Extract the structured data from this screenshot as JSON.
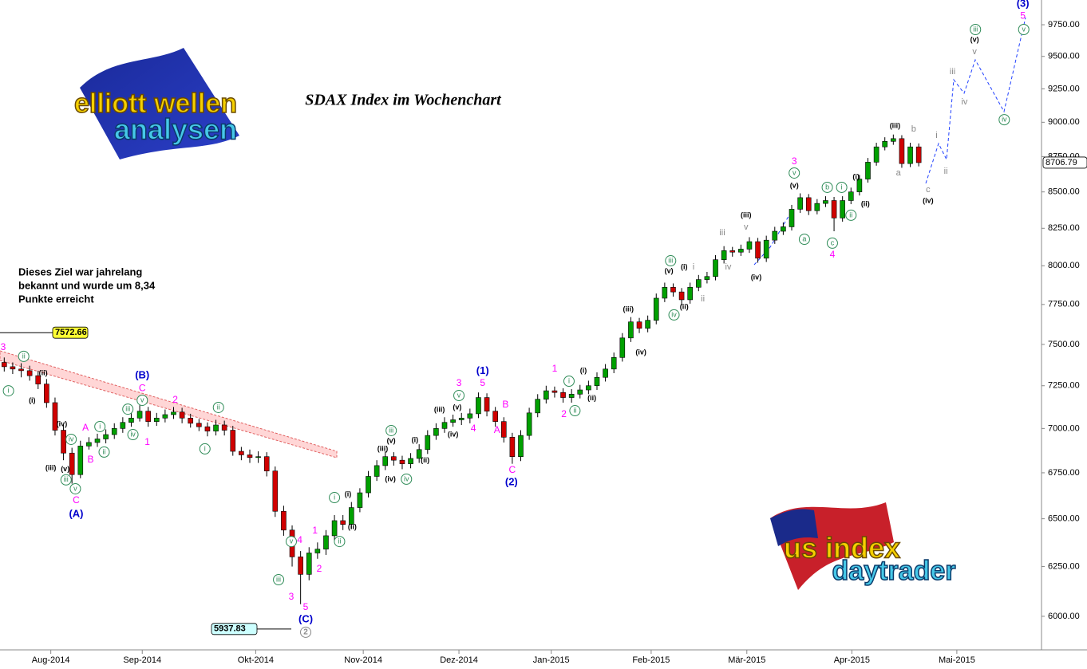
{
  "chart_data": {
    "type": "candlestick",
    "title": "SDAX Index im Wochenchart",
    "note": [
      "Dieses Ziel war jahrelang",
      "bekannt und wurde um 8,34",
      "Punkte erreicht"
    ],
    "logos": [
      "elliott wellen",
      "analysen",
      "us index",
      "daytrader"
    ],
    "log_scale": true,
    "grid": false,
    "up_color": "#00a000",
    "down_color": "#d00000",
    "ylim": [
      5837,
      9950
    ],
    "yticks": [
      {
        "value": 6000,
        "label": "6000.00"
      },
      {
        "value": 6250,
        "label": "6250.00"
      },
      {
        "value": 6500,
        "label": "6500.00"
      },
      {
        "value": 6750,
        "label": "6750.00"
      },
      {
        "value": 7000,
        "label": "7000.00"
      },
      {
        "value": 7250,
        "label": "7250.00"
      },
      {
        "value": 7500,
        "label": "7500.00"
      },
      {
        "value": 7750,
        "label": "7750.00"
      },
      {
        "value": 8000,
        "label": "8000.00"
      },
      {
        "value": 8250,
        "label": "8250.00"
      },
      {
        "value": 8500,
        "label": "8500.00"
      },
      {
        "value": 8750,
        "label": "8750.00"
      },
      {
        "value": 9000,
        "label": "9000.00"
      },
      {
        "value": 9250,
        "label": "9250.00"
      },
      {
        "value": 9500,
        "label": "9500.00"
      },
      {
        "value": 9750,
        "label": "9750.00"
      }
    ],
    "xlim": [
      0,
      123
    ],
    "xticks": [
      {
        "value": 6.0,
        "label": "Aug-2014"
      },
      {
        "value": 16.8,
        "label": "Sep-2014"
      },
      {
        "value": 30.2,
        "label": "Okt-2014"
      },
      {
        "value": 42.9,
        "label": "Nov-2014"
      },
      {
        "value": 54.2,
        "label": "Dez-2014"
      },
      {
        "value": 65.1,
        "label": "Jan-2015"
      },
      {
        "value": 76.9,
        "label": "Feb-2015"
      },
      {
        "value": 88.2,
        "label": "Mär-2015"
      },
      {
        "value": 100.6,
        "label": "Apr-2015"
      },
      {
        "value": 113.0,
        "label": "Mai-2015"
      }
    ],
    "open": [
      7390,
      7364,
      7350,
      7340,
      7310,
      7260,
      7150,
      6990,
      6860,
      6740,
      6900,
      6920,
      6940,
      6965,
      7000,
      7035,
      7060,
      7100,
      7040,
      7060,
      7080,
      7095,
      7060,
      7030,
      7010,
      6985,
      7020,
      6990,
      6870,
      6850,
      6835,
      6840,
      6760,
      6540,
      6440,
      6300,
      6210,
      6320,
      6340,
      6410,
      6490,
      6470,
      6560,
      6640,
      6730,
      6790,
      6840,
      6820,
      6800,
      6830,
      6880,
      6960,
      7000,
      7035,
      7050,
      7060,
      7085,
      7180,
      7100,
      7040,
      6950,
      6840,
      6960,
      7090,
      7170,
      7220,
      7210,
      7180,
      7200,
      7225,
      7250,
      7300,
      7350,
      7420,
      7540,
      7640,
      7600,
      7650,
      7790,
      7860,
      7830,
      7780,
      7860,
      7910,
      7930,
      8040,
      8100,
      8090,
      8110,
      8160,
      8050,
      8170,
      8230,
      8260,
      8380,
      8460,
      8370,
      8420,
      8440,
      8320,
      8440,
      8500,
      8590,
      8710,
      8820,
      8860,
      8880,
      8700,
      8820
    ],
    "high": [
      7420,
      7390,
      7385,
      7370,
      7340,
      7290,
      7180,
      7020,
      6890,
      6930,
      6950,
      6970,
      6995,
      7030,
      7065,
      7095,
      7135,
      7125,
      7090,
      7110,
      7125,
      7120,
      7085,
      7055,
      7035,
      7050,
      7045,
      7015,
      6895,
      6880,
      6870,
      6865,
      6785,
      6570,
      6465,
      6330,
      6350,
      6375,
      6440,
      6520,
      6520,
      6590,
      6665,
      6760,
      6820,
      6870,
      6865,
      6845,
      6860,
      6910,
      6990,
      7030,
      7065,
      7080,
      7090,
      7115,
      7210,
      7205,
      7125,
      7065,
      6975,
      6990,
      7120,
      7200,
      7250,
      7245,
      7235,
      7230,
      7255,
      7280,
      7330,
      7380,
      7450,
      7570,
      7670,
      7665,
      7680,
      7820,
      7890,
      7885,
      7855,
      7890,
      7940,
      7960,
      8070,
      8130,
      8125,
      8140,
      8190,
      8185,
      8200,
      8260,
      8290,
      8410,
      8490,
      8485,
      8450,
      8470,
      8465,
      8470,
      8530,
      8620,
      8740,
      8850,
      8890,
      8910,
      8905,
      8850,
      8845
    ],
    "low": [
      7335,
      7320,
      7300,
      7280,
      7230,
      7120,
      6960,
      6820,
      6690,
      6720,
      6880,
      6895,
      6915,
      6940,
      6975,
      7010,
      7040,
      7010,
      7015,
      7035,
      7055,
      7030,
      7005,
      6985,
      6955,
      6960,
      6960,
      6845,
      6820,
      6805,
      6805,
      6730,
      6510,
      6410,
      6250,
      6060,
      6180,
      6290,
      6310,
      6385,
      6440,
      6445,
      6535,
      6615,
      6705,
      6765,
      6790,
      6770,
      6775,
      6805,
      6855,
      6935,
      6975,
      7010,
      7020,
      7030,
      7060,
      7070,
      7010,
      6920,
      6800,
      6815,
      6935,
      7065,
      7145,
      7180,
      7150,
      7150,
      7175,
      7200,
      7225,
      7275,
      7325,
      7395,
      7515,
      7570,
      7575,
      7625,
      7765,
      7800,
      7745,
      7755,
      7835,
      7885,
      7905,
      8015,
      8060,
      8065,
      8085,
      8020,
      8025,
      8145,
      8205,
      8235,
      8355,
      8340,
      8345,
      8395,
      8230,
      8295,
      8415,
      8475,
      8565,
      8685,
      8795,
      8835,
      8670,
      8675,
      8680
    ],
    "close": [
      7364,
      7350,
      7340,
      7310,
      7260,
      7150,
      6990,
      6860,
      6740,
      6900,
      6920,
      6940,
      6965,
      7000,
      7035,
      7060,
      7100,
      7040,
      7060,
      7080,
      7095,
      7060,
      7030,
      7010,
      6985,
      7020,
      6990,
      6870,
      6850,
      6835,
      6840,
      6760,
      6540,
      6440,
      6300,
      6210,
      6320,
      6340,
      6410,
      6490,
      6470,
      6560,
      6640,
      6730,
      6790,
      6840,
      6820,
      6800,
      6830,
      6880,
      6960,
      7000,
      7035,
      7050,
      7060,
      7085,
      7180,
      7100,
      7040,
      6950,
      6840,
      6960,
      7090,
      7170,
      7220,
      7210,
      7180,
      7200,
      7225,
      7250,
      7300,
      7350,
      7420,
      7540,
      7640,
      7600,
      7650,
      7790,
      7860,
      7830,
      7780,
      7860,
      7910,
      7930,
      8040,
      8100,
      8090,
      8110,
      8160,
      8050,
      8170,
      8230,
      8260,
      8380,
      8460,
      8370,
      8420,
      8440,
      8320,
      8440,
      8500,
      8590,
      8710,
      8820,
      8860,
      8880,
      8700,
      8820,
      8706.79
    ],
    "price_tags": [
      {
        "value": 7572.66,
        "color": "#ffff33"
      },
      {
        "value": 5937.83,
        "color": "#ccffff"
      },
      {
        "value": 8706.79,
        "color": "#ffffff"
      }
    ],
    "annotations": [
      {
        "text": "(3)",
        "x": 120.8,
        "y": 9917,
        "style": "blue"
      },
      {
        "text": "5",
        "x": 120.8,
        "y": 9820,
        "style": "magenta"
      },
      {
        "text": "iii",
        "x": 115.2,
        "y": 9712,
        "style": "green"
      },
      {
        "text": "(v)",
        "x": 115.1,
        "y": 9630,
        "style": "black"
      },
      {
        "text": "v",
        "x": 115.1,
        "y": 9536,
        "style": "gray"
      },
      {
        "text": "iii",
        "x": 112.5,
        "y": 9381,
        "style": "gray"
      },
      {
        "text": "iv",
        "x": 113.9,
        "y": 9150,
        "style": "gray"
      },
      {
        "text": "v",
        "x": 120.9,
        "y": 9712,
        "style": "green"
      },
      {
        "text": "iv",
        "x": 118.6,
        "y": 9019,
        "style": "green"
      },
      {
        "text": "(iii)",
        "x": 105.7,
        "y": 8972,
        "style": "black"
      },
      {
        "text": "b",
        "x": 107.9,
        "y": 8949,
        "style": "gray"
      },
      {
        "text": "i",
        "x": 110.6,
        "y": 8903,
        "style": "gray"
      },
      {
        "text": "a",
        "x": 106.1,
        "y": 8633,
        "style": "gray"
      },
      {
        "text": "ii",
        "x": 111.7,
        "y": 8644,
        "style": "gray"
      },
      {
        "text": "c",
        "x": 109.6,
        "y": 8515,
        "style": "gray"
      },
      {
        "text": "(iv)",
        "x": 109.6,
        "y": 8437,
        "style": "black"
      },
      {
        "text": "3",
        "x": 93.8,
        "y": 8712,
        "style": "magenta"
      },
      {
        "text": "v",
        "x": 93.8,
        "y": 8633,
        "style": "green"
      },
      {
        "text": "(v)",
        "x": 93.8,
        "y": 8543,
        "style": "black"
      },
      {
        "text": "b",
        "x": 97.7,
        "y": 8532,
        "style": "green"
      },
      {
        "text": "i",
        "x": 99.4,
        "y": 8532,
        "style": "green"
      },
      {
        "text": "(i)",
        "x": 101.1,
        "y": 8604,
        "style": "black"
      },
      {
        "text": "(ii)",
        "x": 102.2,
        "y": 8415,
        "style": "black"
      },
      {
        "text": "ii",
        "x": 100.5,
        "y": 8339,
        "style": "green"
      },
      {
        "text": "a",
        "x": 95.0,
        "y": 8176,
        "style": "green"
      },
      {
        "text": "c",
        "x": 98.3,
        "y": 8150,
        "style": "green"
      },
      {
        "text": "4",
        "x": 98.3,
        "y": 8070,
        "style": "magenta"
      },
      {
        "text": "(iii)",
        "x": 88.1,
        "y": 8339,
        "style": "black"
      },
      {
        "text": "v",
        "x": 88.1,
        "y": 8257,
        "style": "gray"
      },
      {
        "text": "iii",
        "x": 85.3,
        "y": 8219,
        "style": "gray"
      },
      {
        "text": "iv",
        "x": 86.0,
        "y": 7991,
        "style": "gray"
      },
      {
        "text": "(iv)",
        "x": 89.3,
        "y": 7924,
        "style": "black"
      },
      {
        "text": "i",
        "x": 81.9,
        "y": 7991,
        "style": "gray"
      },
      {
        "text": "(i)",
        "x": 80.8,
        "y": 7991,
        "style": "black"
      },
      {
        "text": "ii",
        "x": 83.0,
        "y": 7785,
        "style": "gray"
      },
      {
        "text": "(ii)",
        "x": 80.8,
        "y": 7734,
        "style": "black"
      },
      {
        "text": "iii",
        "x": 79.2,
        "y": 8033,
        "style": "green"
      },
      {
        "text": "(v)",
        "x": 79.0,
        "y": 7965,
        "style": "black"
      },
      {
        "text": "iv",
        "x": 79.6,
        "y": 7684,
        "style": "green"
      },
      {
        "text": "(iii)",
        "x": 74.2,
        "y": 7719,
        "style": "black"
      },
      {
        "text": "(iv)",
        "x": 75.7,
        "y": 7451,
        "style": "black"
      },
      {
        "text": "1",
        "x": 65.5,
        "y": 7349,
        "style": "magenta"
      },
      {
        "text": "i",
        "x": 67.2,
        "y": 7277,
        "style": "green"
      },
      {
        "text": "(i)",
        "x": 68.9,
        "y": 7340,
        "style": "black"
      },
      {
        "text": "(ii)",
        "x": 69.9,
        "y": 7174,
        "style": "black"
      },
      {
        "text": "2",
        "x": 66.6,
        "y": 7080,
        "style": "magenta"
      },
      {
        "text": "ii",
        "x": 67.9,
        "y": 7103,
        "style": "green"
      },
      {
        "text": "(1)",
        "x": 57.0,
        "y": 7336,
        "style": "blue"
      },
      {
        "text": "5",
        "x": 57.0,
        "y": 7263,
        "style": "magenta"
      },
      {
        "text": "3",
        "x": 54.2,
        "y": 7263,
        "style": "magenta"
      },
      {
        "text": "v",
        "x": 54.2,
        "y": 7192,
        "style": "green"
      },
      {
        "text": "(v)",
        "x": 54.0,
        "y": 7122,
        "style": "black"
      },
      {
        "text": "(iii)",
        "x": 51.9,
        "y": 7108,
        "style": "black"
      },
      {
        "text": "(iv)",
        "x": 53.5,
        "y": 6965,
        "style": "black"
      },
      {
        "text": "4",
        "x": 55.9,
        "y": 6997,
        "style": "magenta"
      },
      {
        "text": "B",
        "x": 59.7,
        "y": 7136,
        "style": "magenta"
      },
      {
        "text": "A",
        "x": 58.7,
        "y": 6988,
        "style": "magenta"
      },
      {
        "text": "C",
        "x": 60.5,
        "y": 6763,
        "style": "magenta"
      },
      {
        "text": "(2)",
        "x": 60.4,
        "y": 6697,
        "style": "blue"
      },
      {
        "text": "(i)",
        "x": 49.0,
        "y": 6933,
        "style": "black"
      },
      {
        "text": "(ii)",
        "x": 50.2,
        "y": 6817,
        "style": "black"
      },
      {
        "text": "(iii)",
        "x": 45.2,
        "y": 6884,
        "style": "black"
      },
      {
        "text": "iii",
        "x": 46.2,
        "y": 6988,
        "style": "green"
      },
      {
        "text": "(v)",
        "x": 46.2,
        "y": 6929,
        "style": "black"
      },
      {
        "text": "(iv)",
        "x": 46.1,
        "y": 6715,
        "style": "black"
      },
      {
        "text": "iv",
        "x": 48.0,
        "y": 6715,
        "style": "green"
      },
      {
        "text": "(i)",
        "x": 41.1,
        "y": 6632,
        "style": "black"
      },
      {
        "text": "i",
        "x": 39.5,
        "y": 6614,
        "style": "green"
      },
      {
        "text": "(ii)",
        "x": 41.6,
        "y": 6456,
        "style": "black"
      },
      {
        "text": "ii",
        "x": 40.1,
        "y": 6380,
        "style": "green"
      },
      {
        "text": "1",
        "x": 37.2,
        "y": 6435,
        "style": "magenta"
      },
      {
        "text": "2",
        "x": 37.7,
        "y": 6236,
        "style": "magenta"
      },
      {
        "text": "4",
        "x": 35.4,
        "y": 6385,
        "style": "magenta"
      },
      {
        "text": "v",
        "x": 34.4,
        "y": 6380,
        "style": "green"
      },
      {
        "text": "iii",
        "x": 32.9,
        "y": 6183,
        "style": "green"
      },
      {
        "text": "3",
        "x": 34.4,
        "y": 6095,
        "style": "magenta"
      },
      {
        "text": "5",
        "x": 36.1,
        "y": 6043,
        "style": "magenta"
      },
      {
        "text": "(C)",
        "x": 36.1,
        "y": 5984,
        "style": "blue"
      },
      {
        "text": "2",
        "x": 36.1,
        "y": 5922,
        "style": "gray-circle"
      },
      {
        "text": "(i)",
        "x": 3.8,
        "y": 7160,
        "style": "black"
      },
      {
        "text": "(ii)",
        "x": 5.1,
        "y": 7325,
        "style": "black"
      },
      {
        "text": "ii",
        "x": 2.8,
        "y": 7427,
        "style": "green"
      },
      {
        "text": "i",
        "x": 1.0,
        "y": 7220,
        "style": "green"
      },
      {
        "text": "3",
        "x": 0.0,
        "y": 7480,
        "style": "magenta"
      },
      {
        "text": "(iv)",
        "x": 7.3,
        "y": 7025,
        "style": "black"
      },
      {
        "text": "iv",
        "x": 8.4,
        "y": 6938,
        "style": "green"
      },
      {
        "text": "(iii)",
        "x": 6.0,
        "y": 6776,
        "style": "black"
      },
      {
        "text": "(v)",
        "x": 7.7,
        "y": 6768,
        "style": "black"
      },
      {
        "text": "iii",
        "x": 7.8,
        "y": 6711,
        "style": "green"
      },
      {
        "text": "v",
        "x": 8.9,
        "y": 6662,
        "style": "green"
      },
      {
        "text": "C",
        "x": 9.0,
        "y": 6597,
        "style": "magenta"
      },
      {
        "text": "(A)",
        "x": 9.0,
        "y": 6524,
        "style": "blue"
      },
      {
        "text": "A",
        "x": 10.1,
        "y": 7002,
        "style": "magenta"
      },
      {
        "text": "B",
        "x": 10.7,
        "y": 6821,
        "style": "magenta"
      },
      {
        "text": "i",
        "x": 11.8,
        "y": 7011,
        "style": "green"
      },
      {
        "text": "ii",
        "x": 12.3,
        "y": 6866,
        "style": "green"
      },
      {
        "text": "iii",
        "x": 15.1,
        "y": 7112,
        "style": "green"
      },
      {
        "text": "iv",
        "x": 15.7,
        "y": 6965,
        "style": "green"
      },
      {
        "text": "v",
        "x": 16.8,
        "y": 7164,
        "style": "green"
      },
      {
        "text": "(B)",
        "x": 16.8,
        "y": 7311,
        "style": "blue"
      },
      {
        "text": "C",
        "x": 16.8,
        "y": 7234,
        "style": "magenta"
      },
      {
        "text": "1",
        "x": 17.4,
        "y": 6920,
        "style": "magenta"
      },
      {
        "text": "2",
        "x": 20.7,
        "y": 7164,
        "style": "magenta"
      },
      {
        "text": "ii",
        "x": 25.8,
        "y": 7122,
        "style": "green"
      },
      {
        "text": "i",
        "x": 24.2,
        "y": 6884,
        "style": "green"
      }
    ]
  }
}
